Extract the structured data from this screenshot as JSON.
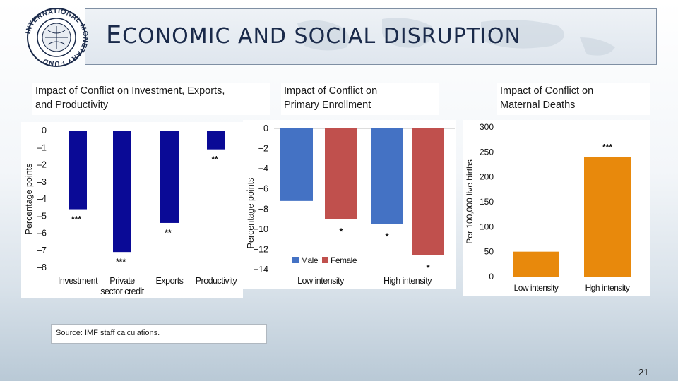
{
  "slide": {
    "title_first": "E",
    "title_rest": "CONOMIC AND SOCIAL DISRUPTION",
    "logo_text": "INTERNATIONAL MONETARY FUND",
    "source": "Source: IMF staff calculations.",
    "page_number": "21"
  },
  "colors": {
    "navy": "#0a0a96",
    "blue": "#4472c4",
    "red": "#c0504d",
    "orange": "#e8890c"
  },
  "chart_data": [
    {
      "type": "bar",
      "caption_line1": "Impact of Conflict on Investment, Exports,",
      "caption_line2": "and Productivity",
      "categories": [
        "Investment",
        "Private",
        "Exports",
        "Productivity"
      ],
      "category_sublabels": [
        "",
        "sector credit",
        "",
        ""
      ],
      "values": [
        -4.6,
        -7.1,
        -5.4,
        -1.1
      ],
      "annotations": [
        "***",
        "***",
        "**",
        "**"
      ],
      "ylabel": "Percentage points",
      "ylim": [
        -8,
        0
      ],
      "yticks": [
        0,
        -1,
        -2,
        -3,
        -4,
        -5,
        -6,
        -7,
        -8
      ],
      "ytick_labels": [
        "0",
        "–1",
        "–2",
        "–3",
        "–4",
        "–5",
        "–6",
        "–7",
        "–8"
      ]
    },
    {
      "type": "bar",
      "caption_line1": "Impact of Conflict on",
      "caption_line2": "Primary Enrollment",
      "categories": [
        "Low intensity",
        "High intensity"
      ],
      "series": [
        {
          "name": "Male",
          "values": [
            -7.2,
            -9.5
          ],
          "annotations": [
            "",
            "*"
          ]
        },
        {
          "name": "Female",
          "values": [
            -9.0,
            -12.6
          ],
          "annotations": [
            "*",
            "*"
          ]
        }
      ],
      "ylabel": "Percentage points",
      "ylim": [
        -14,
        0
      ],
      "yticks": [
        0,
        -2,
        -4,
        -6,
        -8,
        -10,
        -12,
        -14
      ],
      "ytick_labels": [
        "0",
        "−2",
        "−4",
        "−6",
        "−8",
        "−10",
        "−12",
        "−14"
      ]
    },
    {
      "type": "bar",
      "caption_line1": "Impact of Conflict on",
      "caption_line2": "Maternal Deaths",
      "categories": [
        "Low intensity",
        "Hgh intensity"
      ],
      "values": [
        50,
        240
      ],
      "annotations": [
        "",
        "***"
      ],
      "ylabel": "Per 100,000 live births",
      "ylim": [
        0,
        300
      ],
      "yticks": [
        0,
        50,
        100,
        150,
        200,
        250,
        300
      ],
      "ytick_labels": [
        "0",
        "50",
        "100",
        "150",
        "200",
        "250",
        "300"
      ]
    }
  ]
}
